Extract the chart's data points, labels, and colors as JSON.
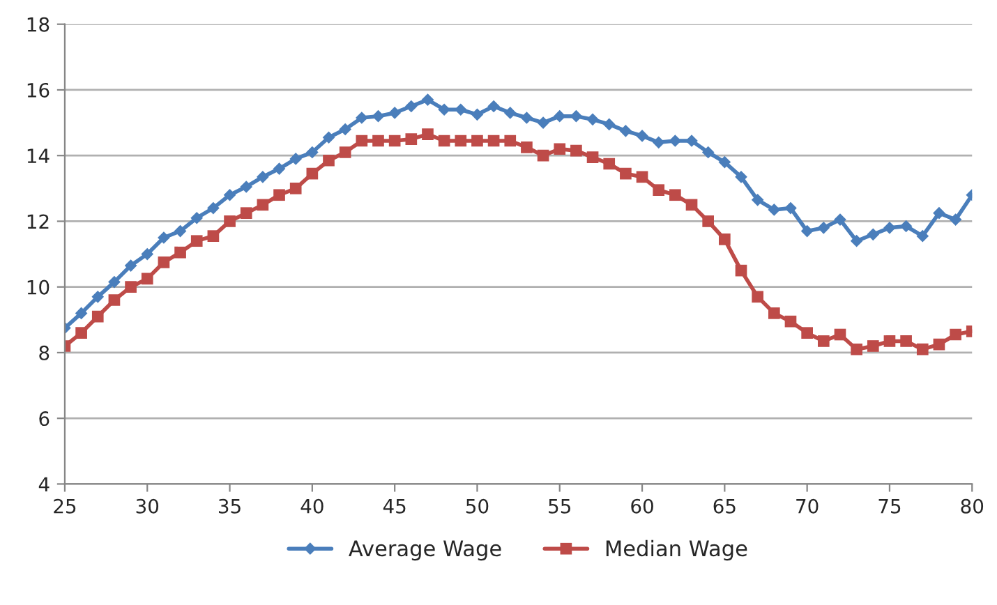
{
  "chart_data": {
    "type": "line",
    "x": [
      25,
      26,
      27,
      28,
      29,
      30,
      31,
      32,
      33,
      34,
      35,
      36,
      37,
      38,
      39,
      40,
      41,
      42,
      43,
      44,
      45,
      46,
      47,
      48,
      49,
      50,
      51,
      52,
      53,
      54,
      55,
      56,
      57,
      58,
      59,
      60,
      61,
      62,
      63,
      64,
      65,
      66,
      67,
      68,
      69,
      70,
      71,
      72,
      73,
      74,
      75,
      76,
      77,
      78,
      79,
      80
    ],
    "series": [
      {
        "name": "Average Wage",
        "color": "#4a7ebb",
        "marker": "diamond",
        "values": [
          8.75,
          9.2,
          9.7,
          10.15,
          10.65,
          11.0,
          11.5,
          11.7,
          12.1,
          12.4,
          12.8,
          13.05,
          13.35,
          13.6,
          13.9,
          14.1,
          14.55,
          14.8,
          15.15,
          15.2,
          15.3,
          15.5,
          15.7,
          15.4,
          15.4,
          15.25,
          15.5,
          15.3,
          15.15,
          15.0,
          15.2,
          15.2,
          15.1,
          14.95,
          14.75,
          14.6,
          14.4,
          14.45,
          14.45,
          14.1,
          13.8,
          13.35,
          12.65,
          12.35,
          12.4,
          11.7,
          11.8,
          12.05,
          11.4,
          11.6,
          11.8,
          11.85,
          11.55,
          12.25,
          12.05,
          12.8
        ]
      },
      {
        "name": "Median Wage",
        "color": "#be4b48",
        "marker": "square",
        "values": [
          8.2,
          8.6,
          9.1,
          9.6,
          10.0,
          10.25,
          10.75,
          11.05,
          11.4,
          11.55,
          12.0,
          12.25,
          12.5,
          12.8,
          13.0,
          13.45,
          13.85,
          14.1,
          14.45,
          14.45,
          14.45,
          14.5,
          14.65,
          14.45,
          14.45,
          14.45,
          14.45,
          14.45,
          14.25,
          14.0,
          14.2,
          14.15,
          13.95,
          13.75,
          13.45,
          13.35,
          12.95,
          12.8,
          12.5,
          12.0,
          11.45,
          10.5,
          9.7,
          9.2,
          8.95,
          8.6,
          8.35,
          8.55,
          8.1,
          8.2,
          8.35,
          8.35,
          8.1,
          8.25,
          8.55,
          8.65
        ]
      }
    ],
    "xlim": [
      25,
      80
    ],
    "xticks": [
      25,
      30,
      35,
      40,
      45,
      50,
      55,
      60,
      65,
      70,
      75,
      80
    ],
    "ylim": [
      4,
      18
    ],
    "yticks": [
      4,
      6,
      8,
      10,
      12,
      14,
      16,
      18
    ],
    "grid": "y",
    "legend": "bottom",
    "line_style": "solid"
  }
}
